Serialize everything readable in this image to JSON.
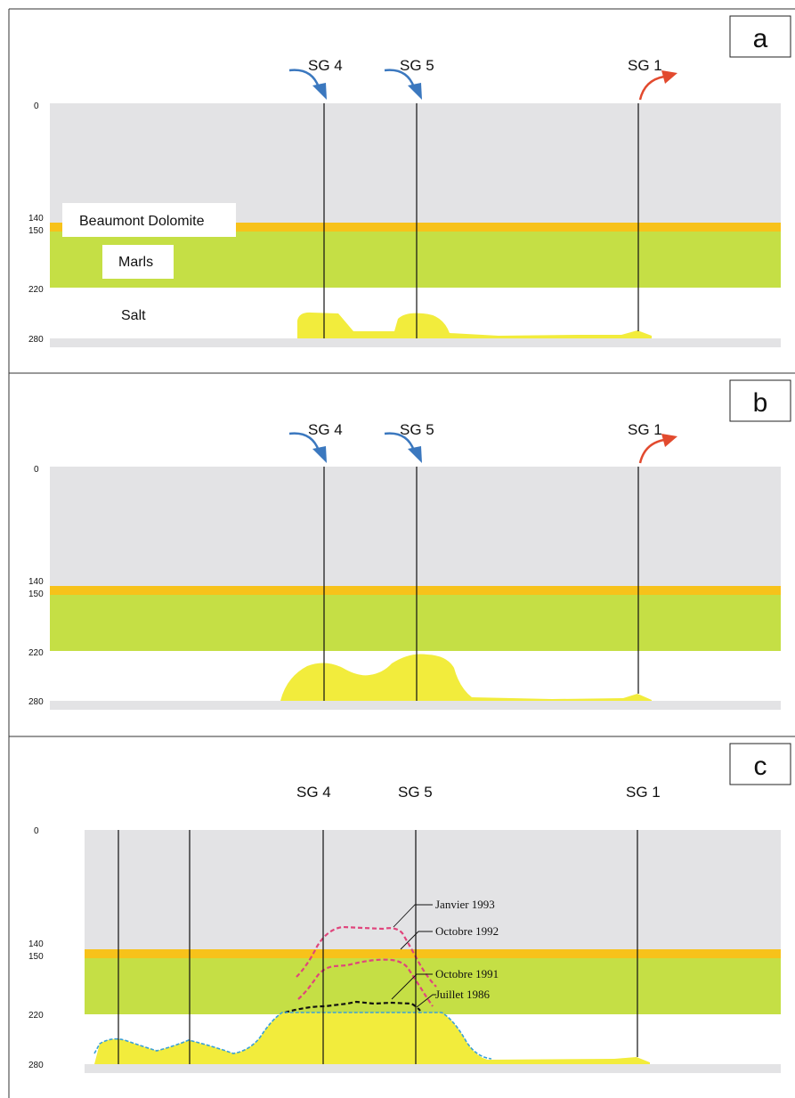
{
  "panels": [
    {
      "letter": "a",
      "wells": [
        {
          "label": "SG 4",
          "flow": "in"
        },
        {
          "label": "SG 5",
          "flow": "in"
        },
        {
          "label": "SG 1",
          "flow": "out"
        }
      ],
      "depth_ticks": [
        "0",
        "140",
        "150",
        "220",
        "280"
      ],
      "layer_labels": {
        "dolomite": "Beaumont Dolomite",
        "marls": "Marls",
        "salt": "Salt"
      }
    },
    {
      "letter": "b",
      "wells": [
        {
          "label": "SG 4",
          "flow": "in"
        },
        {
          "label": "SG 5",
          "flow": "in"
        },
        {
          "label": "SG 1",
          "flow": "out"
        }
      ],
      "depth_ticks": [
        "0",
        "140",
        "150",
        "220",
        "280"
      ]
    },
    {
      "letter": "c",
      "wells": [
        {
          "label": "SG 4"
        },
        {
          "label": "SG 5"
        },
        {
          "label": "SG 1"
        }
      ],
      "depth_ticks": [
        "0",
        "140",
        "150",
        "220",
        "280"
      ],
      "annotations": [
        "Janvier 1993",
        "Octobre 1992",
        "Octobre 1991",
        "Juillet 1986"
      ]
    }
  ],
  "colors": {
    "overburden": "#e3e3e5",
    "dolomite": "#f7c21a",
    "marls": "#c5df45",
    "cavity": "#f2ec3c",
    "arrow_in": "#3b78bf",
    "arrow_out": "#e24a2e",
    "line_red": "#e0457c",
    "line_black": "#111111",
    "line_blue": "#3aa0d8"
  }
}
